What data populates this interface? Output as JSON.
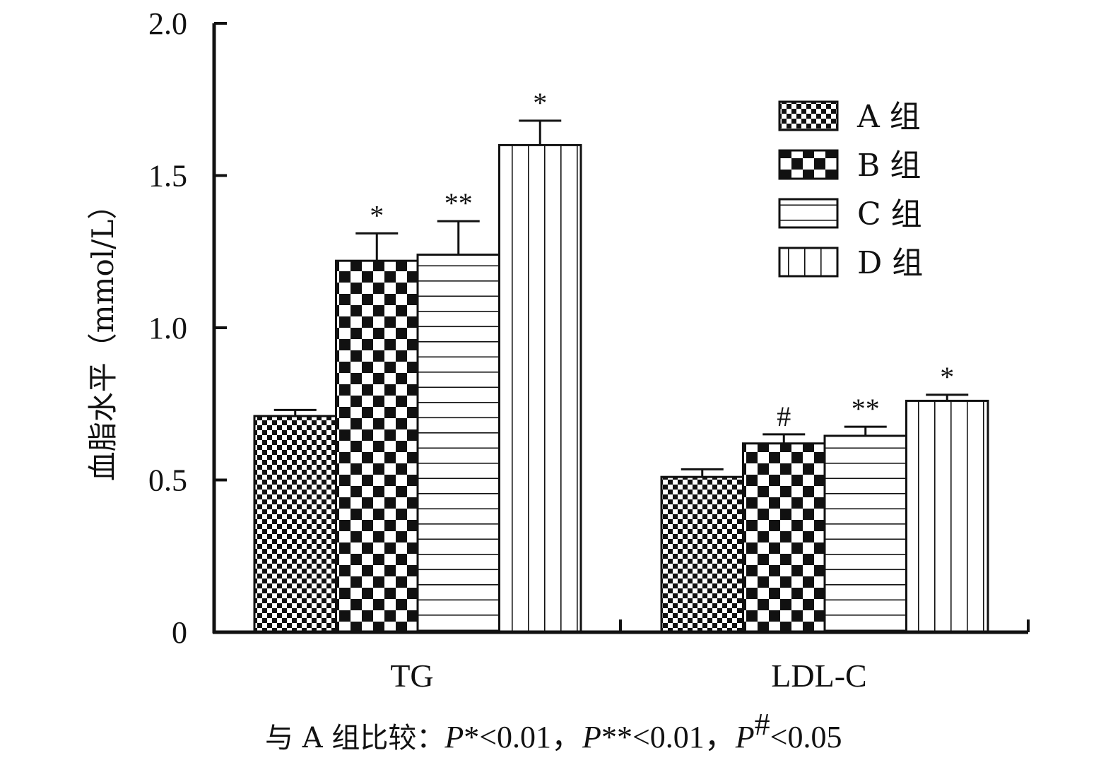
{
  "chart_data": {
    "type": "bar",
    "title": "",
    "ylabel": "血脂水平（mmol/L）",
    "xlabel": "",
    "ylim": [
      0,
      2.0
    ],
    "yticks": [
      "0",
      "0.5",
      "1.0",
      "1.5",
      "2.0"
    ],
    "ytick_values": [
      0,
      0.5,
      1.0,
      1.5,
      2.0
    ],
    "categories": [
      "TG",
      "LDL-C"
    ],
    "legend_position": "top-right",
    "series": [
      {
        "name": "A 组",
        "pattern": "fine-checker",
        "values": [
          0.71,
          0.51
        ],
        "errors": [
          0.02,
          0.025
        ],
        "marks": [
          "",
          ""
        ]
      },
      {
        "name": "B 组",
        "pattern": "coarse-checker",
        "values": [
          1.22,
          0.62
        ],
        "errors": [
          0.09,
          0.03
        ],
        "marks": [
          "*",
          "#"
        ]
      },
      {
        "name": "C 组",
        "pattern": "horizontal-lines",
        "values": [
          1.24,
          0.645
        ],
        "errors": [
          0.11,
          0.03
        ],
        "marks": [
          "**",
          "**"
        ]
      },
      {
        "name": "D 组",
        "pattern": "vertical-lines",
        "values": [
          1.6,
          0.76
        ],
        "errors": [
          0.08,
          0.02
        ],
        "marks": [
          "*",
          "*"
        ]
      }
    ],
    "colors": {
      "fill": "#111111",
      "background": "#ffffff"
    }
  },
  "note": {
    "prefix": "与 A 组比较：",
    "p1_letter": "P",
    "p1_rest": "*<0.01，",
    "p2_letter": "P",
    "p2_rest": "**<0.01，",
    "p3_letter": "P",
    "p3_sup": "#",
    "p3_rest": "<0.05"
  }
}
